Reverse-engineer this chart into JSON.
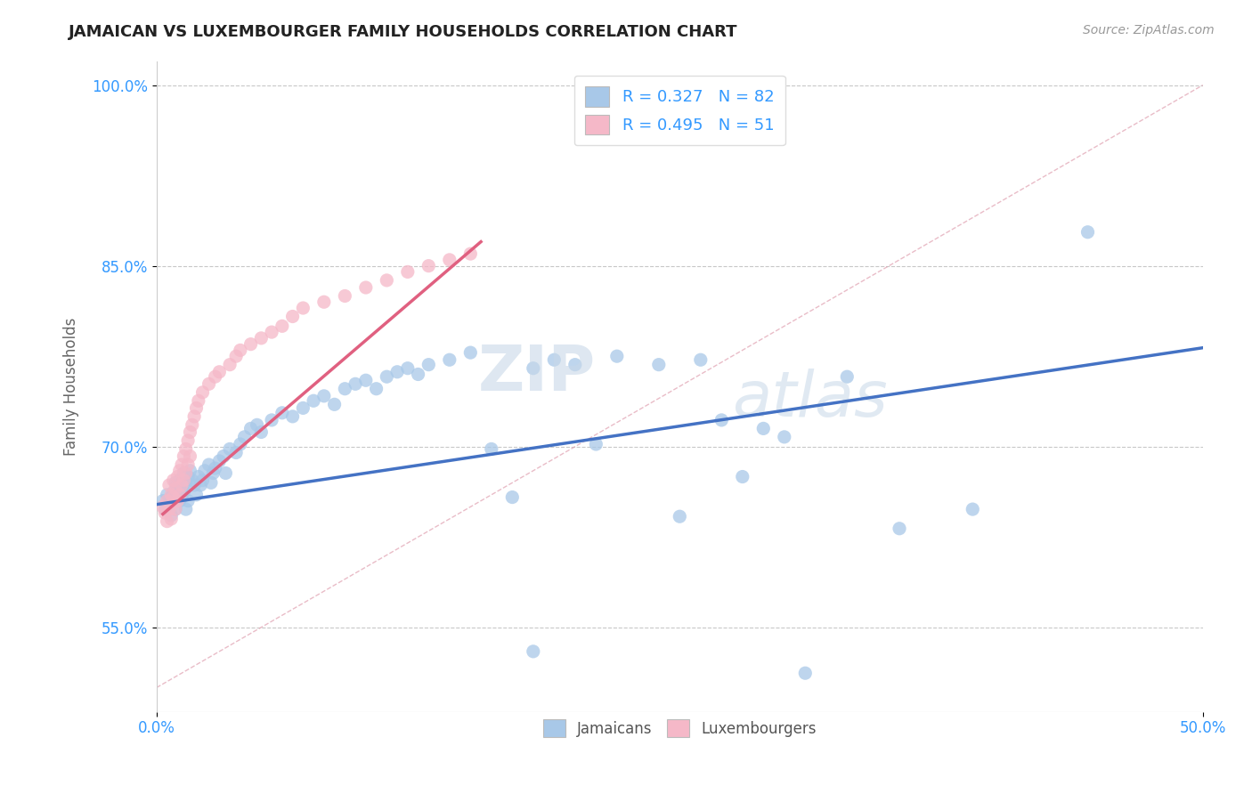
{
  "title": "JAMAICAN VS LUXEMBOURGER FAMILY HOUSEHOLDS CORRELATION CHART",
  "source": "Source: ZipAtlas.com",
  "ylabel": "Family Households",
  "xlim": [
    0.0,
    0.5
  ],
  "ylim": [
    0.48,
    1.02
  ],
  "yticks": [
    0.55,
    0.7,
    0.85,
    1.0
  ],
  "ytick_labels": [
    "55.0%",
    "70.0%",
    "85.0%",
    "100.0%"
  ],
  "xticks": [
    0.0,
    0.5
  ],
  "xtick_labels": [
    "0.0%",
    "50.0%"
  ],
  "grid_yticks": [
    0.55,
    0.7,
    0.85,
    1.0
  ],
  "jamaican_color": "#a8c8e8",
  "luxembourger_color": "#f5b8c8",
  "jamaican_line_color": "#4472c4",
  "luxembourger_line_color": "#e06080",
  "reference_line_color": "#d0d0d0",
  "grid_color": "#c8c8c8",
  "watermark_1": "ZIP",
  "watermark_2": "atlas",
  "legend_r1": "R = 0.327   N = 82",
  "legend_r2": "R = 0.495   N = 51",
  "jamaican_scatter": [
    [
      0.003,
      0.655
    ],
    [
      0.004,
      0.648
    ],
    [
      0.005,
      0.66
    ],
    [
      0.006,
      0.652
    ],
    [
      0.007,
      0.658
    ],
    [
      0.007,
      0.643
    ],
    [
      0.008,
      0.662
    ],
    [
      0.008,
      0.655
    ],
    [
      0.009,
      0.67
    ],
    [
      0.009,
      0.648
    ],
    [
      0.01,
      0.668
    ],
    [
      0.01,
      0.66
    ],
    [
      0.011,
      0.672
    ],
    [
      0.011,
      0.655
    ],
    [
      0.012,
      0.665
    ],
    [
      0.012,
      0.658
    ],
    [
      0.013,
      0.678
    ],
    [
      0.013,
      0.662
    ],
    [
      0.014,
      0.67
    ],
    [
      0.014,
      0.648
    ],
    [
      0.015,
      0.675
    ],
    [
      0.015,
      0.655
    ],
    [
      0.016,
      0.68
    ],
    [
      0.017,
      0.672
    ],
    [
      0.018,
      0.668
    ],
    [
      0.019,
      0.66
    ],
    [
      0.02,
      0.675
    ],
    [
      0.021,
      0.668
    ],
    [
      0.022,
      0.672
    ],
    [
      0.023,
      0.68
    ],
    [
      0.025,
      0.685
    ],
    [
      0.026,
      0.67
    ],
    [
      0.027,
      0.678
    ],
    [
      0.028,
      0.682
    ],
    [
      0.03,
      0.688
    ],
    [
      0.032,
      0.692
    ],
    [
      0.033,
      0.678
    ],
    [
      0.035,
      0.698
    ],
    [
      0.038,
      0.695
    ],
    [
      0.04,
      0.702
    ],
    [
      0.042,
      0.708
    ],
    [
      0.045,
      0.715
    ],
    [
      0.048,
      0.718
    ],
    [
      0.05,
      0.712
    ],
    [
      0.055,
      0.722
    ],
    [
      0.06,
      0.728
    ],
    [
      0.065,
      0.725
    ],
    [
      0.07,
      0.732
    ],
    [
      0.075,
      0.738
    ],
    [
      0.08,
      0.742
    ],
    [
      0.085,
      0.735
    ],
    [
      0.09,
      0.748
    ],
    [
      0.095,
      0.752
    ],
    [
      0.1,
      0.755
    ],
    [
      0.105,
      0.748
    ],
    [
      0.11,
      0.758
    ],
    [
      0.115,
      0.762
    ],
    [
      0.12,
      0.765
    ],
    [
      0.125,
      0.76
    ],
    [
      0.13,
      0.768
    ],
    [
      0.14,
      0.772
    ],
    [
      0.15,
      0.778
    ],
    [
      0.16,
      0.698
    ],
    [
      0.17,
      0.658
    ],
    [
      0.18,
      0.765
    ],
    [
      0.19,
      0.772
    ],
    [
      0.2,
      0.768
    ],
    [
      0.21,
      0.702
    ],
    [
      0.22,
      0.775
    ],
    [
      0.24,
      0.768
    ],
    [
      0.25,
      0.642
    ],
    [
      0.26,
      0.772
    ],
    [
      0.27,
      0.722
    ],
    [
      0.29,
      0.715
    ],
    [
      0.3,
      0.708
    ],
    [
      0.31,
      0.512
    ],
    [
      0.33,
      0.758
    ],
    [
      0.355,
      0.632
    ],
    [
      0.39,
      0.648
    ],
    [
      0.445,
      0.878
    ],
    [
      0.28,
      0.675
    ],
    [
      0.18,
      0.53
    ]
  ],
  "luxembourger_scatter": [
    [
      0.003,
      0.65
    ],
    [
      0.004,
      0.645
    ],
    [
      0.005,
      0.655
    ],
    [
      0.005,
      0.638
    ],
    [
      0.006,
      0.668
    ],
    [
      0.006,
      0.648
    ],
    [
      0.007,
      0.66
    ],
    [
      0.007,
      0.64
    ],
    [
      0.008,
      0.672
    ],
    [
      0.008,
      0.658
    ],
    [
      0.009,
      0.665
    ],
    [
      0.009,
      0.648
    ],
    [
      0.01,
      0.675
    ],
    [
      0.01,
      0.655
    ],
    [
      0.011,
      0.68
    ],
    [
      0.011,
      0.66
    ],
    [
      0.012,
      0.685
    ],
    [
      0.012,
      0.668
    ],
    [
      0.013,
      0.692
    ],
    [
      0.013,
      0.672
    ],
    [
      0.014,
      0.698
    ],
    [
      0.014,
      0.678
    ],
    [
      0.015,
      0.705
    ],
    [
      0.015,
      0.685
    ],
    [
      0.016,
      0.712
    ],
    [
      0.016,
      0.692
    ],
    [
      0.017,
      0.718
    ],
    [
      0.018,
      0.725
    ],
    [
      0.019,
      0.732
    ],
    [
      0.02,
      0.738
    ],
    [
      0.022,
      0.745
    ],
    [
      0.025,
      0.752
    ],
    [
      0.028,
      0.758
    ],
    [
      0.03,
      0.762
    ],
    [
      0.035,
      0.768
    ],
    [
      0.038,
      0.775
    ],
    [
      0.04,
      0.78
    ],
    [
      0.045,
      0.785
    ],
    [
      0.05,
      0.79
    ],
    [
      0.055,
      0.795
    ],
    [
      0.06,
      0.8
    ],
    [
      0.065,
      0.808
    ],
    [
      0.07,
      0.815
    ],
    [
      0.08,
      0.82
    ],
    [
      0.09,
      0.825
    ],
    [
      0.1,
      0.832
    ],
    [
      0.11,
      0.838
    ],
    [
      0.12,
      0.845
    ],
    [
      0.13,
      0.85
    ],
    [
      0.14,
      0.855
    ],
    [
      0.15,
      0.86
    ]
  ],
  "jamaican_trend_x": [
    0.0,
    0.5
  ],
  "jamaican_trend_y": [
    0.652,
    0.782
  ],
  "luxembourger_trend_x": [
    0.003,
    0.155
  ],
  "luxembourger_trend_y": [
    0.644,
    0.87
  ],
  "reference_line_x": [
    0.0,
    0.5
  ],
  "reference_line_y": [
    0.5,
    1.0
  ]
}
